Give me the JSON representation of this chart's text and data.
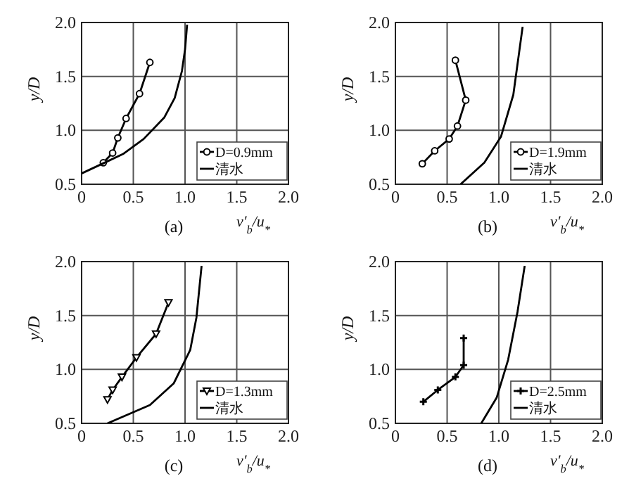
{
  "chart_data": [
    {
      "type": "line",
      "title": "(a)",
      "xlabel": "v′$_{b}$/u$_{*}$",
      "ylabel": "y/D",
      "xlim": [
        0,
        2
      ],
      "ylim": [
        0.5,
        2
      ],
      "xticks": [
        {
          "value": 0,
          "label": "0"
        },
        {
          "value": 0.5,
          "label": "0.5"
        },
        {
          "value": 1,
          "label": "1.0"
        },
        {
          "value": 1.5,
          "label": "1.5"
        },
        {
          "value": 2,
          "label": "2.0"
        }
      ],
      "yticks": [
        {
          "value": 0.5,
          "label": "0.5"
        },
        {
          "value": 1,
          "label": "1.0"
        },
        {
          "value": 1.5,
          "label": "1.5"
        },
        {
          "value": 2,
          "label": "2.0"
        }
      ],
      "grid": true,
      "legend": "bottom right",
      "series": [
        {
          "name": "D=0.9mm",
          "color": "#000000",
          "marker": "circle",
          "x": [
            0.21,
            0.3,
            0.35,
            0.43,
            0.56,
            0.66
          ],
          "values": [
            0.7,
            0.79,
            0.93,
            1.11,
            1.34,
            1.63
          ]
        },
        {
          "name": "清水",
          "color": "#000000",
          "marker": "none",
          "x": [
            0,
            0.2,
            0.4,
            0.6,
            0.8,
            0.9,
            0.97,
            1.0,
            1.02
          ],
          "values": [
            0.6,
            0.69,
            0.78,
            0.92,
            1.12,
            1.3,
            1.55,
            1.75,
            1.98
          ]
        }
      ]
    },
    {
      "type": "line",
      "title": "(b)",
      "xlabel": "v′$_{b}$/u$_{*}$",
      "ylabel": "y/D",
      "xlim": [
        0,
        2
      ],
      "ylim": [
        0.5,
        2
      ],
      "xticks": [
        {
          "value": 0,
          "label": "0"
        },
        {
          "value": 0.5,
          "label": "0.5"
        },
        {
          "value": 1,
          "label": "1.0"
        },
        {
          "value": 1.5,
          "label": "1.5"
        },
        {
          "value": 2,
          "label": "2.0"
        }
      ],
      "yticks": [
        {
          "value": 0.5,
          "label": "0.5"
        },
        {
          "value": 1,
          "label": "1.0"
        },
        {
          "value": 1.5,
          "label": "1.5"
        },
        {
          "value": 2,
          "label": "2.0"
        }
      ],
      "grid": true,
      "legend": "bottom right",
      "series": [
        {
          "name": "D=1.9mm",
          "color": "#000000",
          "marker": "circle",
          "x": [
            0.26,
            0.38,
            0.52,
            0.6,
            0.68,
            0.58
          ],
          "values": [
            0.69,
            0.81,
            0.92,
            1.04,
            1.28,
            1.65
          ]
        },
        {
          "name": "清水",
          "color": "#000000",
          "marker": "none",
          "x": [
            0.63,
            0.86,
            1.02,
            1.14,
            1.23
          ],
          "values": [
            0.5,
            0.7,
            0.94,
            1.33,
            1.96
          ]
        }
      ]
    },
    {
      "type": "line",
      "title": "(c)",
      "xlabel": "v′$_{b}$/u$_{*}$",
      "ylabel": "y/D",
      "xlim": [
        0,
        2
      ],
      "ylim": [
        0.5,
        2
      ],
      "xticks": [
        {
          "value": 0,
          "label": "0"
        },
        {
          "value": 0.5,
          "label": "0.5"
        },
        {
          "value": 1,
          "label": "1.0"
        },
        {
          "value": 1.5,
          "label": "1.5"
        },
        {
          "value": 2,
          "label": "2.0"
        }
      ],
      "yticks": [
        {
          "value": 0.5,
          "label": "0.5"
        },
        {
          "value": 1,
          "label": "1.0"
        },
        {
          "value": 1.5,
          "label": "1.5"
        },
        {
          "value": 2,
          "label": "2.0"
        }
      ],
      "grid": true,
      "legend": "bottom right",
      "series": [
        {
          "name": "D=1.3mm",
          "color": "#000000",
          "marker": "triangle",
          "x": [
            0.25,
            0.3,
            0.39,
            0.53,
            0.72,
            0.84
          ],
          "values": [
            0.72,
            0.81,
            0.93,
            1.11,
            1.33,
            1.62
          ]
        },
        {
          "name": "清水",
          "color": "#000000",
          "marker": "none",
          "x": [
            0.25,
            0.66,
            0.89,
            1.05,
            1.11,
            1.16
          ],
          "values": [
            0.5,
            0.67,
            0.87,
            1.18,
            1.48,
            1.96
          ]
        }
      ]
    },
    {
      "type": "line",
      "title": "(d)",
      "xlabel": "v′$_{b}$/u$_{*}$",
      "ylabel": "y/D",
      "xlim": [
        0,
        2
      ],
      "ylim": [
        0.5,
        2
      ],
      "xticks": [
        {
          "value": 0,
          "label": "0"
        },
        {
          "value": 0.5,
          "label": "0.5"
        },
        {
          "value": 1,
          "label": "1.0"
        },
        {
          "value": 1.5,
          "label": "1.5"
        },
        {
          "value": 2,
          "label": "2.0"
        }
      ],
      "yticks": [
        {
          "value": 0.5,
          "label": "0.5"
        },
        {
          "value": 1,
          "label": "1.0"
        },
        {
          "value": 1.5,
          "label": "1.5"
        },
        {
          "value": 2,
          "label": "2.0"
        }
      ],
      "grid": true,
      "legend": "bottom right",
      "series": [
        {
          "name": "D=2.5mm",
          "color": "#000000",
          "marker": "cross",
          "x": [
            0.27,
            0.41,
            0.58,
            0.66,
            0.66
          ],
          "values": [
            0.7,
            0.81,
            0.93,
            1.04,
            1.29
          ]
        },
        {
          "name": "清水",
          "color": "#000000",
          "marker": "none",
          "x": [
            0.83,
            0.98,
            1.09,
            1.18,
            1.25
          ],
          "values": [
            0.5,
            0.74,
            1.09,
            1.53,
            1.96
          ]
        }
      ]
    }
  ]
}
